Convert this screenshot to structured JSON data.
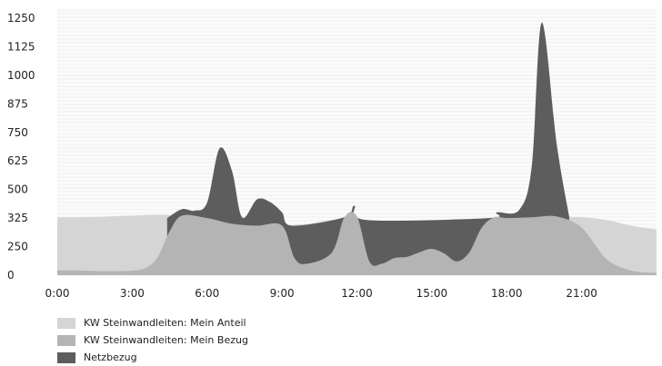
{
  "chart_data": {
    "type": "area",
    "y_ticks": [
      "0",
      "250",
      "325",
      "500",
      "625",
      "750",
      "875",
      "1000",
      "1125",
      "1250"
    ],
    "x_ticks": [
      "0:00",
      "3:00",
      "6:00",
      "9:00",
      "12:00",
      "15:00",
      "18:00",
      "21:00"
    ],
    "x_tick_hours": [
      0,
      3,
      6,
      9,
      12,
      15,
      18,
      21
    ],
    "xlim": [
      0,
      24
    ],
    "ylim": [
      0,
      1250
    ],
    "grid": true,
    "legend_position": "bottom-left",
    "series": [
      {
        "name": "KW Steinwandleiten: Mein Anteil",
        "color": "#d5d5d5",
        "x": [
          0,
          1,
          2,
          3,
          4,
          5,
          6,
          7,
          8,
          9,
          10,
          11,
          12,
          13,
          14,
          15,
          16,
          17,
          18,
          19,
          20,
          21,
          22,
          23,
          24
        ],
        "y": [
          330,
          330,
          335,
          340,
          345,
          340,
          325,
          310,
          305,
          305,
          310,
          320,
          320,
          305,
          300,
          305,
          310,
          315,
          320,
          330,
          335,
          330,
          320,
          305,
          295
        ]
      },
      {
        "name": "KW Steinwandleiten: Mein Bezug",
        "color": "#b4b4b4",
        "x": [
          0,
          1,
          2,
          3,
          3.5,
          4,
          4.5,
          5,
          6,
          7,
          8,
          9,
          9.5,
          10,
          11,
          11.5,
          12,
          12.5,
          13,
          13.5,
          14,
          14.5,
          15,
          15.5,
          16,
          16.5,
          17,
          17.5,
          18,
          19,
          20,
          21,
          22,
          23,
          24
        ],
        "y": [
          40,
          40,
          35,
          40,
          60,
          150,
          290,
          340,
          325,
          310,
          305,
          305,
          150,
          100,
          200,
          330,
          335,
          120,
          100,
          150,
          160,
          200,
          230,
          190,
          120,
          200,
          300,
          330,
          325,
          330,
          335,
          300,
          140,
          40,
          20
        ]
      },
      {
        "name": "Netzbezug",
        "color": "#5d5d5d",
        "x": [
          4.4,
          5,
          5.5,
          6,
          6.5,
          7,
          7.4,
          8,
          8.5,
          9,
          9.4,
          11.5,
          11.9,
          12.4,
          17.3,
          17.6,
          18.5,
          19,
          19.4,
          20,
          20.5
        ],
        "y": [
          325,
          380,
          370,
          420,
          680,
          580,
          330,
          440,
          425,
          360,
          305,
          330,
          400,
          320,
          325,
          360,
          375,
          600,
          1230,
          700,
          335
        ]
      }
    ]
  }
}
